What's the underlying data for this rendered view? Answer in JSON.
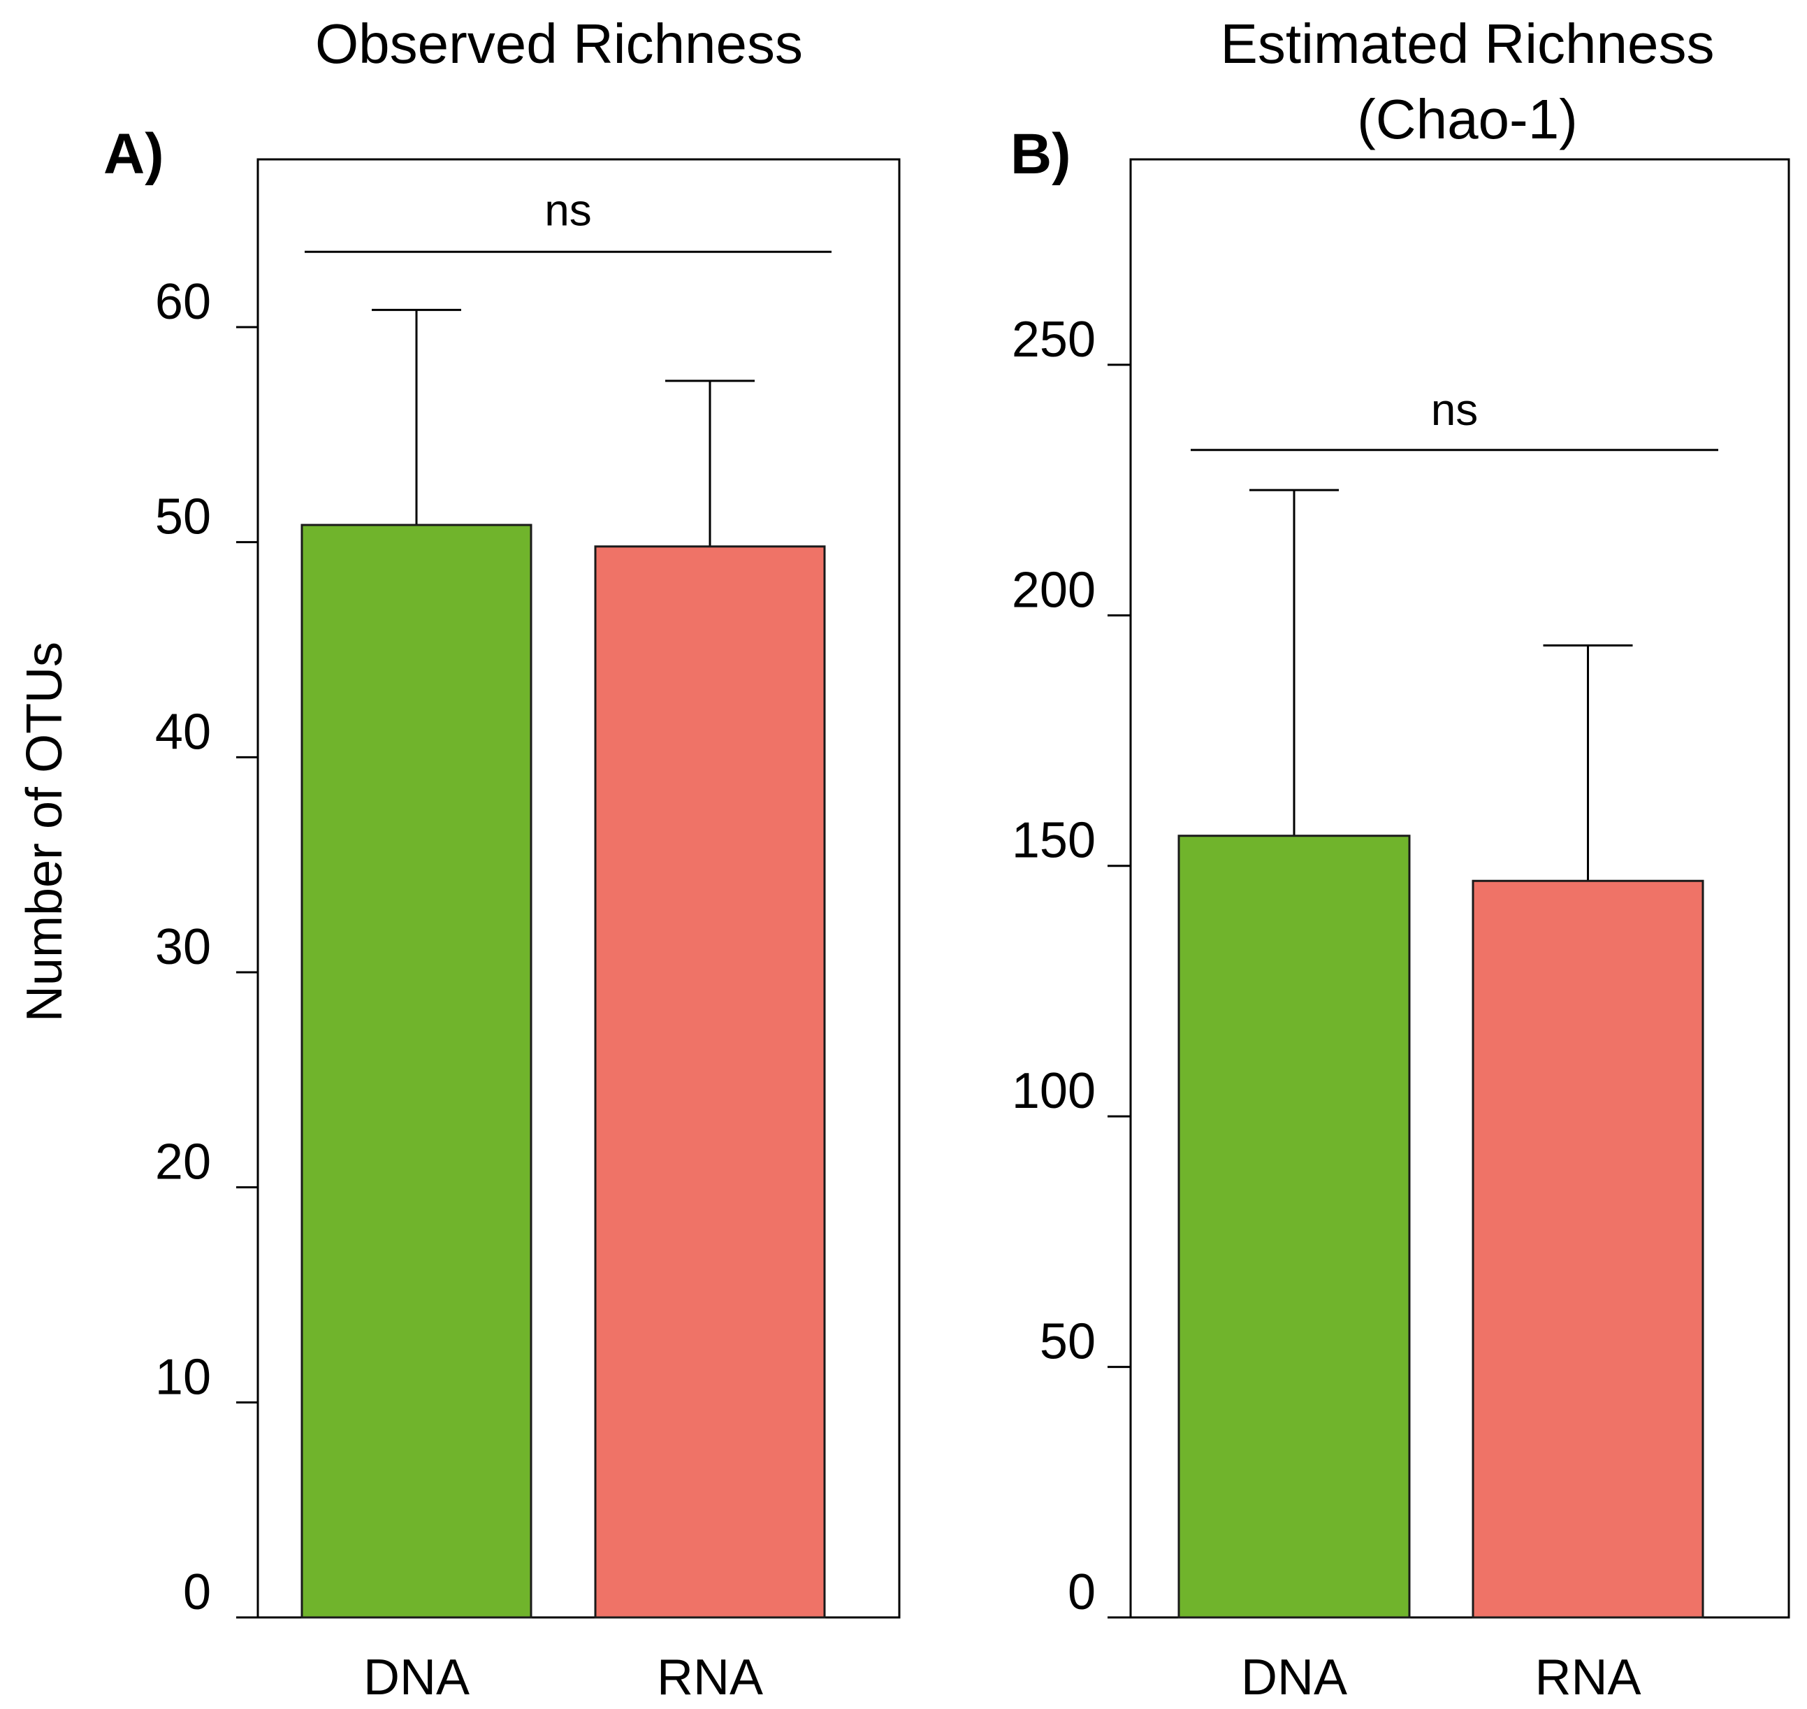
{
  "chart_data": [
    {
      "type": "bar",
      "panel_label": "A)",
      "title": "Observed Richness",
      "ylabel": "Number of OTUs",
      "xlabel": "",
      "categories": [
        "DNA",
        "RNA"
      ],
      "values": [
        50.8,
        49.8
      ],
      "error_upper": [
        60.8,
        57.5
      ],
      "colors": [
        "#70b42c",
        "#ef7367"
      ],
      "yticks": [
        0,
        10,
        20,
        30,
        40,
        50,
        60
      ],
      "ylim": [
        0,
        67.8
      ],
      "significance": {
        "label": "ns",
        "y": 63.5
      },
      "grid": false,
      "legend": "none"
    },
    {
      "type": "bar",
      "panel_label": "B)",
      "title": "Estimated Richness (Chao-1)",
      "title_lines": [
        "Estimated Richness",
        "(Chao-1)"
      ],
      "ylabel": "",
      "xlabel": "",
      "categories": [
        "DNA",
        "RNA"
      ],
      "values": [
        156,
        147
      ],
      "error_upper": [
        225,
        194
      ],
      "colors": [
        "#70b42c",
        "#ef7367"
      ],
      "yticks": [
        0,
        50,
        100,
        150,
        200,
        250
      ],
      "ylim": [
        0,
        291
      ],
      "significance": {
        "label": "ns",
        "y": 233
      },
      "grid": false,
      "legend": "none"
    }
  ]
}
